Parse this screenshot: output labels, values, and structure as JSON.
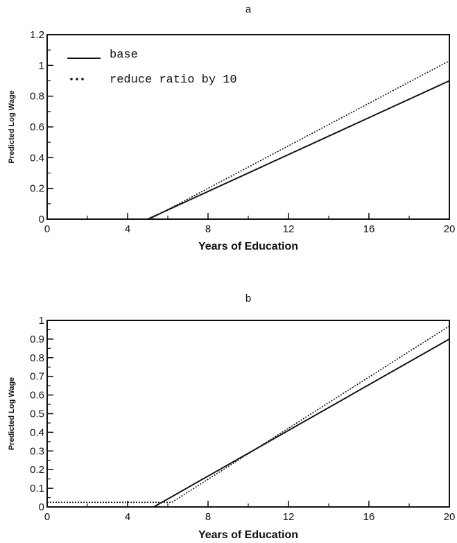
{
  "chart_data": [
    {
      "type": "line",
      "title": "a",
      "xlabel": "Years of Education",
      "ylabel": "Predicted Log Wage",
      "xlim": [
        0,
        20
      ],
      "ylim": [
        0,
        1.2
      ],
      "x_ticks": [
        "0",
        "4",
        "8",
        "12",
        "16",
        "20"
      ],
      "y_ticks": [
        "0",
        "0.2",
        "0.4",
        "0.6",
        "0.8",
        "1",
        "1.2"
      ],
      "x_minor_step": 2,
      "y_minor_step": 0.1,
      "legend": "top-left",
      "grid": false,
      "series": [
        {
          "name": "base",
          "style": "solid",
          "x": [
            5,
            20
          ],
          "y": [
            0,
            0.9
          ]
        },
        {
          "name": "reduce ratio by 10",
          "style": "dotted",
          "x": [
            5.1,
            20
          ],
          "y": [
            0,
            1.03
          ]
        }
      ]
    },
    {
      "type": "line",
      "title": "b",
      "xlabel": "Years of Education",
      "ylabel": "Predicted Log Wage",
      "xlim": [
        0,
        20
      ],
      "ylim": [
        0,
        1
      ],
      "x_ticks": [
        "0",
        "4",
        "8",
        "12",
        "16",
        "20"
      ],
      "y_ticks": [
        "0",
        "0.1",
        "0.2",
        "0.3",
        "0.4",
        "0.5",
        "0.6",
        "0.7",
        "0.8",
        "0.9",
        "1"
      ],
      "x_minor_step": 2,
      "y_minor_step": 0.05,
      "legend": "",
      "grid": false,
      "series": [
        {
          "style": "solid",
          "x": [
            0,
            5.3,
            20
          ],
          "y": [
            0,
            0,
            0.9
          ]
        },
        {
          "style": "dotted",
          "x": [
            0,
            6.2,
            20
          ],
          "y": [
            0.025,
            0.025,
            0.97
          ]
        }
      ]
    }
  ],
  "colors": {
    "ink": "#111111",
    "background": "#ffffff"
  }
}
